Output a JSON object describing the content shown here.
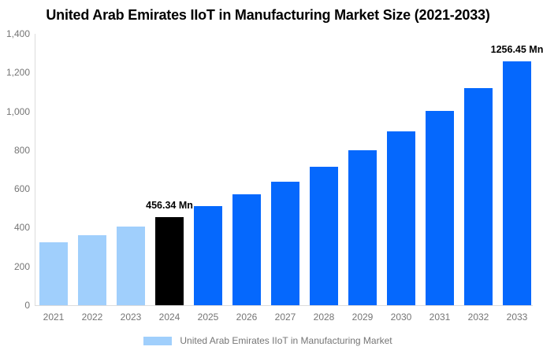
{
  "chart_data": {
    "type": "bar",
    "title": "United Arab Emirates IIoT in Manufacturing Market Size (2021-2033)",
    "unit": "Mn",
    "categories": [
      "2021",
      "2022",
      "2023",
      "2024",
      "2025",
      "2026",
      "2027",
      "2028",
      "2029",
      "2030",
      "2031",
      "2032",
      "2033"
    ],
    "values": [
      324,
      361,
      406,
      456.34,
      511,
      571,
      639,
      716,
      801,
      896,
      1003,
      1122,
      1256.45
    ],
    "color_roles": [
      "historical",
      "historical",
      "historical",
      "current",
      "forecast",
      "forecast",
      "forecast",
      "forecast",
      "forecast",
      "forecast",
      "forecast",
      "forecast",
      "forecast"
    ],
    "annotations": [
      {
        "category": "2024",
        "value": 456.34,
        "label": "456.34 Mn"
      },
      {
        "category": "2033",
        "value": 1256.45,
        "label": "1256.45 Mn"
      }
    ],
    "ylim": [
      0,
      1400
    ],
    "y_ticks": [
      {
        "value": 0,
        "label": "0"
      },
      {
        "value": 200,
        "label": "200"
      },
      {
        "value": 400,
        "label": "400"
      },
      {
        "value": 600,
        "label": "600"
      },
      {
        "value": 800,
        "label": "800"
      },
      {
        "value": 1000,
        "label": "1,000"
      },
      {
        "value": 1200,
        "label": "1,200"
      },
      {
        "value": 1400,
        "label": "1,400"
      }
    ],
    "grid": "off",
    "legend_position": "bottom",
    "legend": "United Arab Emirates IIoT in Manufacturing Market"
  },
  "colors": {
    "historical": "#A0CFFC",
    "current": "#000000",
    "forecast": "#0568FD",
    "axis_line": "#DCDCDC",
    "tick_text": "#757575",
    "legend_text": "#757575",
    "title_text": "#000000"
  }
}
